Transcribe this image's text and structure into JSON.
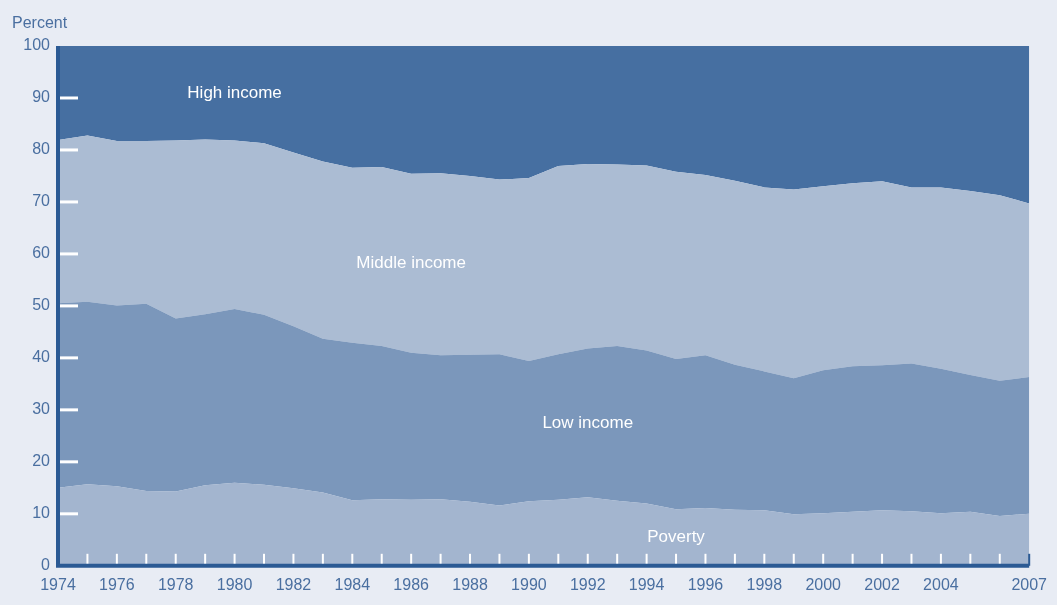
{
  "chart_data": {
    "type": "area",
    "stacked": true,
    "ylabel": "Percent",
    "x": [
      1974,
      1975,
      1976,
      1977,
      1978,
      1979,
      1980,
      1981,
      1982,
      1983,
      1984,
      1985,
      1986,
      1987,
      1988,
      1989,
      1990,
      1991,
      1992,
      1993,
      1994,
      1995,
      1996,
      1997,
      1998,
      1999,
      2000,
      2001,
      2002,
      2003,
      2004,
      2005,
      2006,
      2007
    ],
    "xlim": [
      1974,
      2007
    ],
    "xticks": [
      1974,
      {
        "value": 1975,
        "label": null
      },
      1976,
      {
        "value": 1977,
        "label": null
      },
      1978,
      {
        "value": 1979,
        "label": null
      },
      1980,
      {
        "value": 1981,
        "label": null
      },
      1982,
      {
        "value": 1983,
        "label": null
      },
      1984,
      {
        "value": 1985,
        "label": null
      },
      1986,
      {
        "value": 1987,
        "label": null
      },
      1988,
      {
        "value": 1989,
        "label": null
      },
      1990,
      {
        "value": 1991,
        "label": null
      },
      1992,
      {
        "value": 1993,
        "label": null
      },
      1994,
      {
        "value": 1995,
        "label": null
      },
      1996,
      {
        "value": 1997,
        "label": null
      },
      1998,
      {
        "value": 1999,
        "label": null
      },
      2000,
      {
        "value": 2001,
        "label": null
      },
      2002,
      {
        "value": 2003,
        "label": null
      },
      2004,
      {
        "value": 2005,
        "label": null
      },
      {
        "value": 2006,
        "label": null
      },
      2007
    ],
    "ylim": [
      0,
      100
    ],
    "yticks": [
      0,
      10,
      20,
      30,
      40,
      50,
      60,
      70,
      80,
      90,
      100
    ],
    "series": [
      {
        "name": "Poverty",
        "color": "#a3b5cf",
        "values": [
          15,
          15.7,
          15.3,
          14.4,
          14.3,
          15.5,
          16,
          15.6,
          14.9,
          14.1,
          12.6,
          12.8,
          12.7,
          12.8,
          12.3,
          11.6,
          12.4,
          12.7,
          13.2,
          12.5,
          12,
          10.9,
          11.1,
          10.8,
          10.7,
          9.9,
          10.1,
          10.4,
          10.7,
          10.5,
          10.1,
          10.4,
          9.6,
          10
        ]
      },
      {
        "name": "Low income",
        "color": "#7b97bb",
        "values": [
          35.5,
          35.1,
          34.8,
          36,
          33.3,
          32.9,
          33.4,
          32.7,
          31.2,
          29.6,
          30.3,
          29.5,
          28.3,
          27.7,
          28.3,
          29.1,
          27,
          28,
          28.6,
          29.8,
          29.4,
          28.9,
          29.4,
          27.9,
          26.7,
          26.2,
          27.5,
          28,
          27.9,
          28.4,
          27.8,
          26.3,
          26,
          26.3
        ]
      },
      {
        "name": "Middle income",
        "color": "#abbcd3",
        "values": [
          31.4,
          32,
          31.6,
          31.3,
          34.2,
          33.6,
          32.4,
          33,
          33.4,
          34.1,
          33.7,
          34.4,
          34.4,
          35,
          34.4,
          33.6,
          35.2,
          36.2,
          35.5,
          34.9,
          35.6,
          36,
          34.7,
          35.4,
          35.4,
          36.3,
          35.4,
          35.2,
          35.4,
          33.9,
          34.9,
          35.4,
          35.7,
          33.4
        ]
      },
      {
        "name": "High income",
        "color": "#466fa1",
        "values": [
          18.1,
          17.2,
          18.3,
          18.3,
          18.2,
          18,
          18.2,
          18.7,
          20.5,
          22.2,
          23.4,
          23.3,
          24.6,
          24.5,
          25,
          25.7,
          25.4,
          23.1,
          22.7,
          22.8,
          23,
          24.2,
          24.8,
          25.9,
          27.2,
          27.6,
          27,
          26.4,
          26,
          27.2,
          27.2,
          27.9,
          28.7,
          30.3
        ]
      }
    ]
  }
}
